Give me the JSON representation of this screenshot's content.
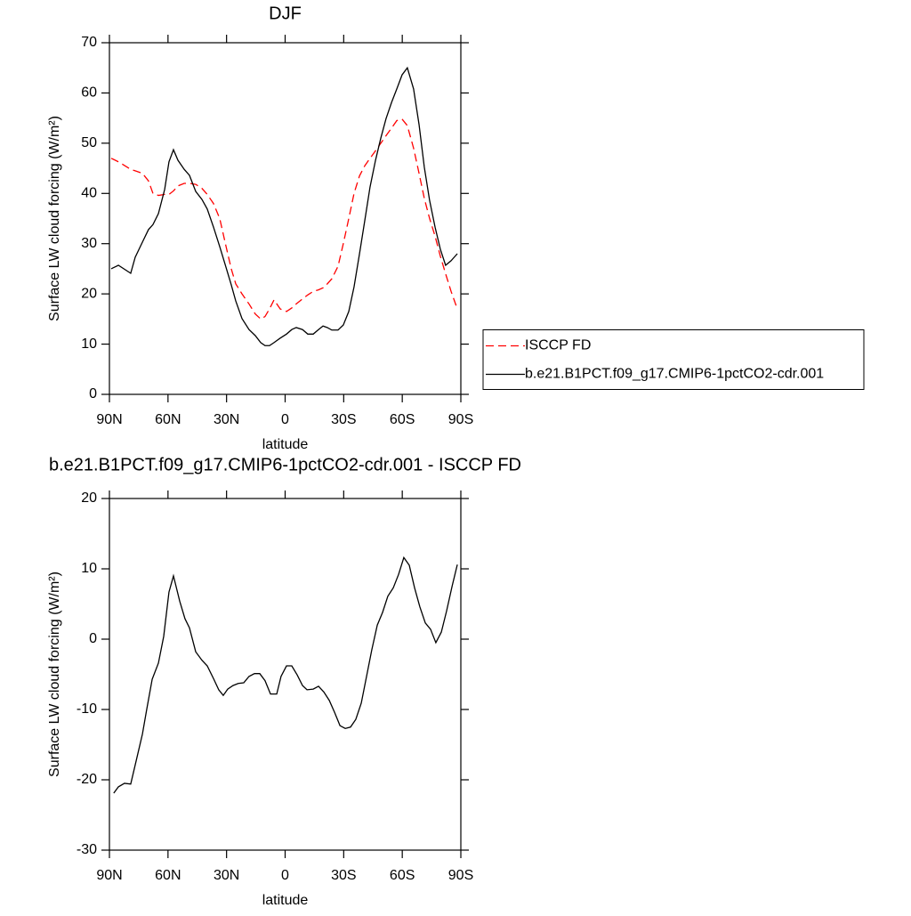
{
  "chart_data": [
    {
      "type": "line",
      "title": "DJF",
      "xlabel": "latitude",
      "ylabel": "Surface LW cloud forcing (W/m²)",
      "x": [
        89.1,
        85.4,
        79.1,
        76.8,
        73.1,
        70.0,
        67.7,
        64.9,
        61.7,
        59.5,
        57.2,
        54.9,
        51.7,
        49.0,
        45.8,
        42.6,
        39.9,
        36.7,
        33.5,
        30.3,
        27.6,
        25.3,
        22.1,
        18.5,
        15.3,
        12.5,
        10.3,
        8.0,
        5.7,
        2.5,
        -0.7,
        -3.4,
        -5.7,
        -8.9,
        -11.6,
        -14.4,
        -17.1,
        -19.4,
        -21.6,
        -23.9,
        -27.1,
        -29.8,
        -32.6,
        -35.3,
        -38.1,
        -40.8,
        -43.5,
        -46.3,
        -49.0,
        -51.7,
        -54.5,
        -57.2,
        -59.9,
        -62.6,
        -65.8,
        -68.6,
        -71.3,
        -74.0,
        -76.8,
        -79.5,
        -82.2,
        -85.0,
        -88.2
      ],
      "series": [
        {
          "name": "ISCCP FD",
          "color": "#ff0000",
          "dash": "dashed",
          "values": [
            47.0,
            46.3,
            44.8,
            44.5,
            44.0,
            42.5,
            40.0,
            39.6,
            39.8,
            39.8,
            40.5,
            41.5,
            42.0,
            42.0,
            41.8,
            41.0,
            39.8,
            38.0,
            35.0,
            29.5,
            25.0,
            22.0,
            20.0,
            18.0,
            16.0,
            15.0,
            15.5,
            17.0,
            18.8,
            17.0,
            16.5,
            17.2,
            18.0,
            19.0,
            19.8,
            20.5,
            20.8,
            21.2,
            22.0,
            23.0,
            25.5,
            30.0,
            35.0,
            40.0,
            43.5,
            45.5,
            47.0,
            48.5,
            50.0,
            51.5,
            53.0,
            54.5,
            54.8,
            53.5,
            49.0,
            44.0,
            39.0,
            35.0,
            31.5,
            27.5,
            24.0,
            20.5,
            17.0
          ]
        },
        {
          "name": "b.e21.B1PCT.f09_g17.CMIP6-1pctCO2-cdr.001",
          "color": "#000000",
          "dash": "solid",
          "values": [
            25.0,
            25.7,
            24.1,
            27.3,
            30.3,
            32.8,
            33.8,
            36.0,
            40.8,
            46.3,
            48.7,
            46.6,
            44.8,
            43.6,
            40.4,
            38.8,
            36.9,
            33.3,
            29.4,
            25.3,
            21.8,
            18.6,
            15.1,
            12.9,
            11.7,
            10.3,
            9.7,
            9.7,
            10.3,
            11.2,
            12.0,
            12.9,
            13.3,
            12.9,
            12.0,
            12.0,
            12.9,
            13.6,
            13.3,
            12.8,
            12.8,
            13.8,
            16.5,
            21.4,
            28.0,
            34.6,
            41.3,
            46.6,
            51.0,
            54.9,
            58.1,
            60.8,
            63.6,
            65.0,
            60.8,
            53.7,
            45.2,
            38.6,
            33.3,
            28.9,
            25.7,
            26.6,
            28.0
          ]
        }
      ],
      "xlim": [
        90,
        -90
      ],
      "xticks": [
        {
          "value": 90,
          "label": "90N"
        },
        {
          "value": 60,
          "label": "60N"
        },
        {
          "value": 30,
          "label": "30N"
        },
        0,
        {
          "value": -30,
          "label": "30S"
        },
        {
          "value": -60,
          "label": "60S"
        },
        {
          "value": -90,
          "label": "90S"
        }
      ],
      "ylim": [
        0,
        70
      ],
      "yticks": [
        0,
        10,
        20,
        30,
        40,
        50,
        60,
        70
      ],
      "grid": false,
      "legend": "right"
    },
    {
      "type": "line",
      "title": "b.e21.B1PCT.f09_g17.CMIP6-1pctCO2-cdr.001 - ISCCP FD",
      "xlabel": "latitude",
      "ylabel": "Surface LW cloud forcing (W/m²)",
      "x": [
        87.8,
        85.4,
        82.3,
        79.1,
        76.3,
        73.1,
        70.9,
        68.1,
        64.9,
        62.2,
        59.5,
        57.2,
        54.0,
        51.3,
        49.0,
        45.8,
        42.6,
        39.9,
        36.7,
        34.0,
        31.7,
        29.4,
        26.7,
        24.0,
        21.2,
        18.5,
        15.7,
        13.0,
        10.3,
        7.5,
        4.3,
        2.1,
        -0.7,
        -3.4,
        -6.2,
        -8.9,
        -11.2,
        -14.4,
        -17.1,
        -19.8,
        -22.6,
        -25.3,
        -28.1,
        -30.8,
        -33.5,
        -36.2,
        -39.0,
        -41.7,
        -44.4,
        -47.2,
        -49.9,
        -52.6,
        -55.4,
        -58.1,
        -60.8,
        -63.6,
        -66.3,
        -69.0,
        -71.8,
        -74.5,
        -77.2,
        -80.0,
        -82.7,
        -85.5,
        -88.2
      ],
      "series": [
        {
          "color": "#000000",
          "dash": "solid",
          "values": [
            -21.9,
            -21.0,
            -20.5,
            -20.6,
            -17.3,
            -13.5,
            -10.0,
            -5.7,
            -3.4,
            0.4,
            6.7,
            9.0,
            5.4,
            2.9,
            1.6,
            -1.8,
            -3.0,
            -3.8,
            -5.6,
            -7.2,
            -8.0,
            -7.1,
            -6.6,
            -6.3,
            -6.2,
            -5.3,
            -4.9,
            -4.9,
            -5.9,
            -7.8,
            -7.8,
            -5.3,
            -3.8,
            -3.8,
            -5.1,
            -6.6,
            -7.2,
            -7.1,
            -6.7,
            -7.5,
            -8.7,
            -10.4,
            -12.3,
            -12.7,
            -12.5,
            -11.4,
            -9.1,
            -5.3,
            -1.5,
            2.0,
            3.8,
            6.1,
            7.3,
            9.2,
            11.6,
            10.5,
            7.3,
            4.6,
            2.3,
            1.4,
            -0.5,
            1.0,
            4.0,
            7.5,
            10.6
          ]
        }
      ],
      "xlim": [
        90,
        -90
      ],
      "xticks": [
        {
          "value": 90,
          "label": "90N"
        },
        {
          "value": 60,
          "label": "60N"
        },
        {
          "value": 30,
          "label": "30N"
        },
        0,
        {
          "value": -30,
          "label": "30S"
        },
        {
          "value": -60,
          "label": "60S"
        },
        {
          "value": -90,
          "label": "90S"
        }
      ],
      "ylim": [
        -30,
        20
      ],
      "yticks": [
        -30,
        -20,
        -10,
        0,
        10,
        20
      ],
      "grid": false
    }
  ]
}
